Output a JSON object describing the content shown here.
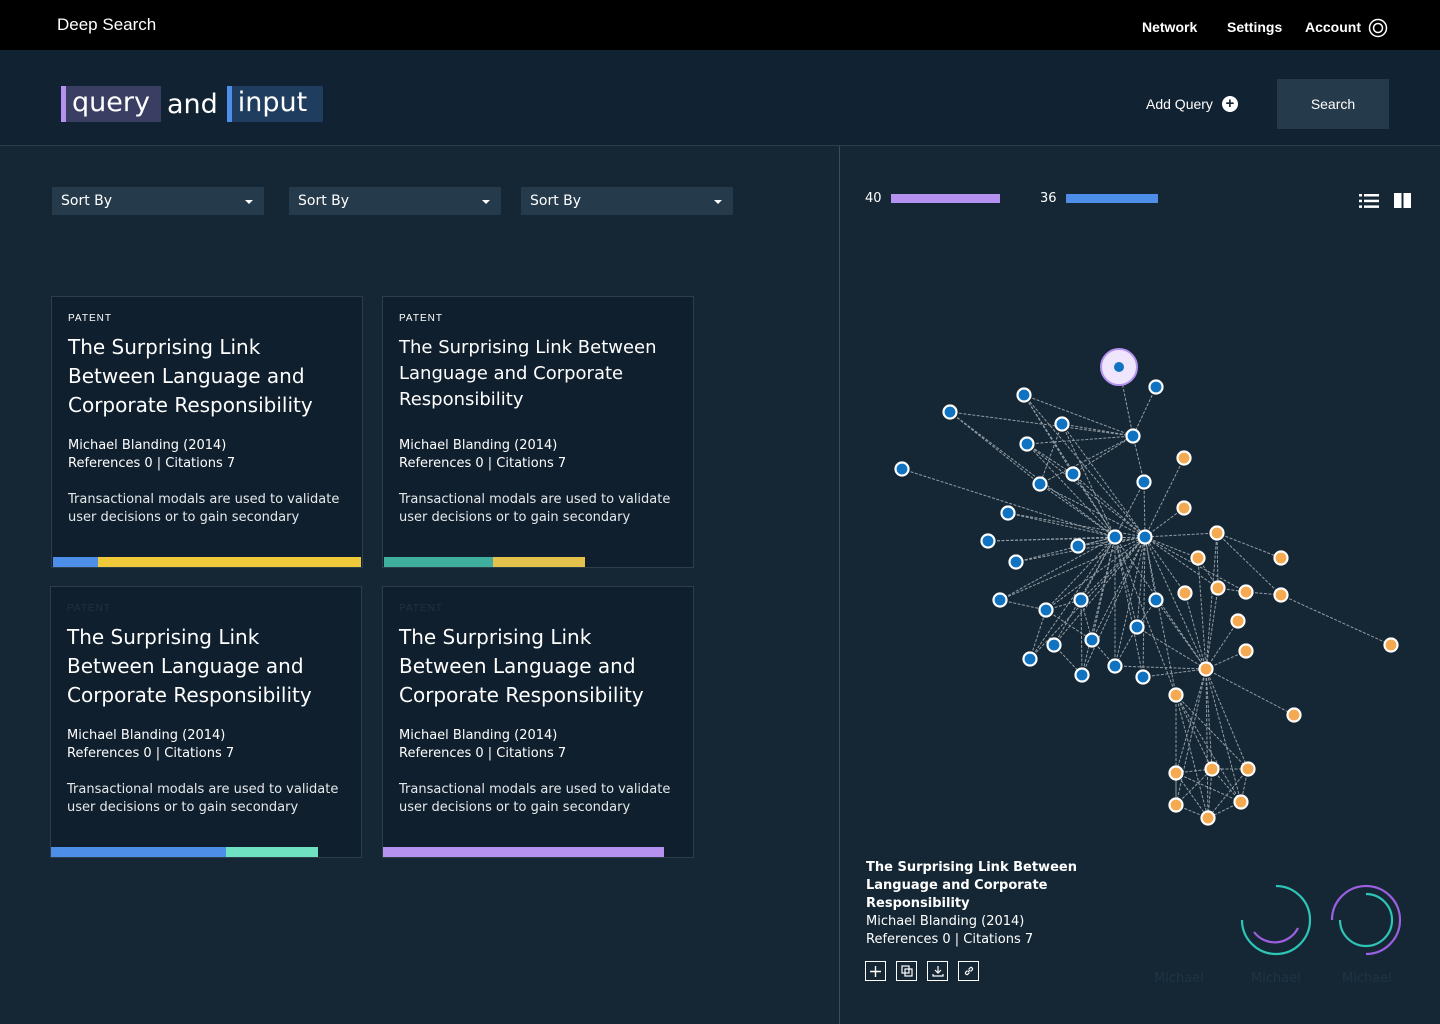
{
  "app": {
    "title": "Deep Search"
  },
  "nav": {
    "network": "Network",
    "settings": "Settings",
    "account": "Account"
  },
  "query": {
    "word1": "query",
    "connector": "and",
    "word2": "input",
    "add_label": "Add Query",
    "search_label": "Search"
  },
  "sort": [
    {
      "label": "Sort By"
    },
    {
      "label": "Sort By"
    },
    {
      "label": "Sort By"
    }
  ],
  "cards": [
    {
      "type": "PATENT",
      "title": "The Surprising Link Between Language and Corporate Responsibility",
      "author_year": "Michael Blanding  (2014)",
      "refs": "References 0  |  Citations 7",
      "desc": "Transactional modals are used to validate user decisions or to gain secondary"
    },
    {
      "type": "PATENT",
      "title": "The Surprising Link Between Language and Corporate Responsibility",
      "author_year": "Michael Blanding  (2014)",
      "refs": "References 0  |  Citations 7",
      "desc": "Transactional modals are used to validate user decisions or to gain secondary"
    },
    {
      "type": "PATENT",
      "title": "The Surprising Link Between Language and Corporate Responsibility",
      "author_year": "Michael Blanding  (2014)",
      "refs": "References 0  |  Citations 7",
      "desc": "Transactional modals are used to validate user decisions or to gain secondary"
    },
    {
      "type": "PATENT",
      "title": "The Surprising Link Between Language and Corporate Responsibility",
      "author_year": "Michael Blanding  (2014)",
      "refs": "References 0  |  Citations 7",
      "desc": "Transactional modals are used to validate user decisions or to gain secondary"
    }
  ],
  "counts": [
    {
      "value": "40",
      "color": "#b591f0"
    },
    {
      "value": "36",
      "color": "#4d8fe8"
    }
  ],
  "detail": {
    "title": "The Surprising Link Between Language and Corporate Responsibility",
    "author_year": "Michael Blanding  (2014)",
    "refs": "References 0  |  Citations 7"
  },
  "rings": [
    {
      "label": "Michael"
    },
    {
      "label": "Michael"
    },
    {
      "label": "Michael"
    }
  ],
  "colors": {
    "purple": "#b591f0",
    "blue": "#4d8fe8",
    "yellow": "#f0c93a",
    "teal": "#3fae9d",
    "mint": "#6fe3c1",
    "orange": "#f5a951",
    "node_blue": "#0f73c2"
  }
}
